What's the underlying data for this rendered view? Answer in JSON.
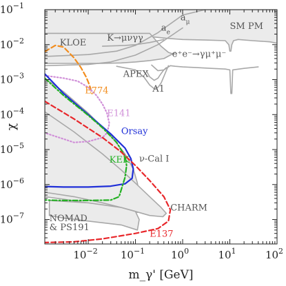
{
  "chart_data": {
    "type": "line",
    "title": "",
    "xlabel": "m_γ' [GeV]",
    "ylabel": "χ",
    "xscale": "log",
    "yscale": "log",
    "xlim": [
      0.0012,
      100
    ],
    "ylim": [
      2e-08,
      0.1
    ],
    "grid": false,
    "x_ticks": [
      {
        "value": 0.01,
        "label": "10",
        "exp": "−2"
      },
      {
        "value": 0.1,
        "label": "10",
        "exp": "−1"
      },
      {
        "value": 1,
        "label": "10",
        "exp": "0"
      },
      {
        "value": 10,
        "label": "10",
        "exp": "1"
      },
      {
        "value": 100,
        "label": "10",
        "exp": "2"
      }
    ],
    "y_ticks": [
      {
        "value": 0.1,
        "label": "10",
        "exp": "−1"
      },
      {
        "value": 0.01,
        "label": "10",
        "exp": "−2"
      },
      {
        "value": 0.001,
        "label": "10",
        "exp": "−3"
      },
      {
        "value": 0.0001,
        "label": "10",
        "exp": "−4"
      },
      {
        "value": 1e-05,
        "label": "10",
        "exp": "−5"
      },
      {
        "value": 1e-06,
        "label": "10",
        "exp": "−6"
      },
      {
        "value": 1e-07,
        "label": "10",
        "exp": "−7"
      }
    ],
    "colors": {
      "excluded_fill": "#ebebeb",
      "bound_gray": "#a8a8a8",
      "e774": "#f28c1c",
      "e141": "#d08fd8",
      "orsay": "#1f2fd8",
      "kek": "#22b022",
      "e137": "#e8262a",
      "label_gray": "#555555"
    },
    "series": [
      {
        "name": "SM PM",
        "color": "#a8a8a8",
        "style": "solid",
        "fill": true,
        "points": [
          [
            0.0012,
            0.1
          ],
          [
            100,
            0.1
          ],
          [
            100,
            0.011
          ],
          [
            70,
            0.012
          ],
          [
            30,
            0.013
          ],
          [
            15,
            0.014
          ],
          [
            12,
            0.013
          ],
          [
            11,
            0.01
          ],
          [
            10.5,
            0.0065
          ],
          [
            10,
            0.0065
          ],
          [
            9.5,
            0.01
          ],
          [
            8,
            0.013
          ],
          [
            3,
            0.0135
          ],
          [
            1,
            0.014
          ],
          [
            0.5,
            0.015
          ],
          [
            0.2,
            0.017
          ],
          [
            0.1,
            0.018
          ],
          [
            0.05,
            0.018
          ],
          [
            0.02,
            0.02
          ],
          [
            0.0012,
            0.021
          ]
        ]
      },
      {
        "name": "KLOE",
        "color": "#a8a8a8",
        "style": "solid",
        "fill": true,
        "points": [
          [
            0.0012,
            0.021
          ],
          [
            0.2,
            0.021
          ],
          [
            0.35,
            0.009
          ],
          [
            0.5,
            0.006
          ],
          [
            0.6,
            0.0055
          ],
          [
            0.7,
            0.006
          ],
          [
            0.4,
            0.004
          ],
          [
            0.2,
            0.0035
          ],
          [
            0.1,
            0.0032
          ],
          [
            0.05,
            0.003
          ],
          [
            0.02,
            0.0029
          ],
          [
            0.01,
            0.0029
          ],
          [
            0.005,
            0.0029
          ],
          [
            0.0012,
            0.0029
          ]
        ]
      },
      {
        "name": "e+e−→γμ+μ−",
        "color": "#a8a8a8",
        "style": "solid",
        "fill": false,
        "points": [
          [
            0.22,
            0.0026
          ],
          [
            0.3,
            0.0018
          ],
          [
            0.4,
            0.0019
          ],
          [
            0.55,
            0.0025
          ],
          [
            0.7,
            0.0024
          ],
          [
            1,
            0.0023
          ],
          [
            2,
            0.0022
          ],
          [
            4,
            0.0021
          ],
          [
            8,
            0.002
          ],
          [
            10,
            0.0019
          ],
          [
            10.5,
            0.0004
          ],
          [
            11,
            0.0004
          ],
          [
            11.5,
            0.0019
          ],
          [
            20,
            0.0021
          ],
          [
            40,
            0.0023
          ]
        ]
      },
      {
        "name": "APEX",
        "color": "#a8a8a8",
        "style": "solid",
        "fill": false,
        "points": [
          [
            0.17,
            0.0018
          ],
          [
            0.2,
            0.0012
          ],
          [
            0.25,
            0.00095
          ],
          [
            0.3,
            0.0011
          ],
          [
            0.35,
            0.0015
          ],
          [
            0.4,
            0.0019
          ],
          [
            0.45,
            0.0022
          ]
        ]
      },
      {
        "name": "A1",
        "color": "#a8a8a8",
        "style": "solid",
        "fill": false,
        "points": [
          [
            0.04,
            0.0024
          ],
          [
            0.1,
            0.0019
          ],
          [
            0.15,
            0.0012
          ],
          [
            0.2,
            0.0007
          ],
          [
            0.25,
            0.00055
          ],
          [
            0.3,
            0.0006
          ],
          [
            0.35,
            0.0008
          ],
          [
            0.45,
            0.0018
          ],
          [
            0.5,
            0.0025
          ]
        ]
      },
      {
        "name": "a_e",
        "color": "#a8a8a8",
        "style": "solid",
        "fill": false,
        "points": [
          [
            0.0012,
            0.0025
          ],
          [
            0.01,
            0.0027
          ],
          [
            0.03,
            0.0032
          ],
          [
            0.1,
            0.005
          ],
          [
            0.3,
            0.01
          ],
          [
            1,
            0.03
          ]
        ]
      },
      {
        "name": "a_μ",
        "color": "#a8a8a8",
        "style": "solid",
        "fill": false,
        "points": [
          [
            0.0012,
            0.0046
          ],
          [
            0.01,
            0.0052
          ],
          [
            0.04,
            0.0065
          ],
          [
            0.1,
            0.0095
          ],
          [
            0.3,
            0.022
          ],
          [
            1,
            0.07
          ],
          [
            3,
            0.1
          ]
        ]
      },
      {
        "name": "K→μνγγ",
        "color": "#a8a8a8",
        "style": "solid",
        "fill": false,
        "points": [
          [
            0.02,
            0.009
          ],
          [
            0.06,
            0.0095
          ],
          [
            0.1,
            0.01
          ],
          [
            0.2,
            0.0115
          ],
          [
            0.4,
            0.014
          ]
        ]
      },
      {
        "name": "ν-Cal I",
        "color": "#a8a8a8",
        "style": "solid",
        "fill": true,
        "points": [
          [
            0.0012,
            0.0011
          ],
          [
            0.003,
            0.00045
          ],
          [
            0.01,
            0.00011
          ],
          [
            0.03,
            2.5e-05
          ],
          [
            0.06,
            7.5e-06
          ],
          [
            0.09,
            2.8e-06
          ],
          [
            0.11,
            1.1e-06
          ],
          [
            0.12,
            5e-07
          ],
          [
            0.12,
            2e-07
          ],
          [
            0.11,
            1.6e-07
          ],
          [
            0.08,
            1.8e-07
          ],
          [
            0.04,
            2.2e-07
          ],
          [
            0.015,
            2.7e-07
          ],
          [
            0.003,
            3.8e-07
          ],
          [
            0.0012,
            4.5e-07
          ]
        ]
      },
      {
        "name": "CHARM",
        "color": "#a8a8a8",
        "style": "solid",
        "fill": true,
        "points": [
          [
            0.0012,
            0.00012
          ],
          [
            0.005,
            3.2e-05
          ],
          [
            0.02,
            7.5e-06
          ],
          [
            0.05,
            2.6e-06
          ],
          [
            0.1,
            1.1e-06
          ],
          [
            0.2,
            4.5e-07
          ],
          [
            0.35,
            2.2e-07
          ],
          [
            0.45,
            1.5e-07
          ],
          [
            0.38,
            1.2e-07
          ],
          [
            0.2,
            1.3e-07
          ],
          [
            0.1,
            1.7e-07
          ],
          [
            0.05,
            2.2e-07
          ],
          [
            0.02,
            3e-07
          ],
          [
            0.005,
            4.5e-07
          ],
          [
            0.0012,
            6e-07
          ]
        ]
      },
      {
        "name": "NOMAD & PS191",
        "color": "#a8a8a8",
        "style": "solid",
        "fill": true,
        "points": [
          [
            0.0015,
            3.5e-07
          ],
          [
            0.01,
            3e-07
          ],
          [
            0.05,
            2.2e-07
          ],
          [
            0.1,
            1.7e-07
          ],
          [
            0.12,
            1e-07
          ],
          [
            0.11,
            5e-08
          ],
          [
            0.05,
            7e-08
          ],
          [
            0.01,
            9e-08
          ],
          [
            0.003,
            1.1e-07
          ],
          [
            0.0015,
            1.3e-07
          ]
        ]
      },
      {
        "name": "E774",
        "color": "#f28c1c",
        "style": "dashed",
        "fill": false,
        "points": [
          [
            0.0012,
            0.0063
          ],
          [
            0.002,
            0.0095
          ],
          [
            0.003,
            0.0085
          ],
          [
            0.005,
            0.0042
          ],
          [
            0.007,
            0.0022
          ],
          [
            0.009,
            0.0012
          ],
          [
            0.01,
            0.00085
          ],
          [
            0.011,
            0.0006
          ],
          [
            0.012,
            0.0004
          ]
        ]
      },
      {
        "name": "E141",
        "color": "#d08fd8",
        "style": "dotted",
        "fill": false,
        "points": [
          [
            0.0012,
            0.0013
          ],
          [
            0.003,
            0.0011
          ],
          [
            0.006,
            0.0009
          ],
          [
            0.01,
            0.0006
          ],
          [
            0.015,
            0.00035
          ],
          [
            0.02,
            0.0002
          ],
          [
            0.025,
            0.00011
          ],
          [
            0.028,
            5.5e-05
          ],
          [
            0.025,
            3e-05
          ],
          [
            0.02,
            2.2e-05
          ],
          [
            0.01,
            1.7e-05
          ],
          [
            0.005,
            1.6e-05
          ],
          [
            0.003,
            2e-05
          ],
          [
            0.0012,
            3e-05
          ]
        ]
      },
      {
        "name": "Orsay",
        "color": "#1f2fd8",
        "style": "solid",
        "fill": false,
        "points": [
          [
            0.0012,
            0.00145
          ],
          [
            0.003,
            0.0004
          ],
          [
            0.01,
            0.0001
          ],
          [
            0.03,
            2.8e-05
          ],
          [
            0.06,
            1.1e-05
          ],
          [
            0.08,
            5.5e-06
          ],
          [
            0.09,
            2.8e-06
          ],
          [
            0.085,
            1.5e-06
          ],
          [
            0.06,
            1.05e-06
          ],
          [
            0.03,
            9e-07
          ],
          [
            0.01,
            8.5e-07
          ],
          [
            0.003,
            8.5e-07
          ],
          [
            0.0012,
            8.8e-07
          ]
        ]
      },
      {
        "name": "KEK",
        "color": "#22b022",
        "style": "dashdot",
        "fill": false,
        "points": [
          [
            0.0012,
            0.0011
          ],
          [
            0.003,
            0.00035
          ],
          [
            0.01,
            9.5e-05
          ],
          [
            0.02,
            4.2e-05
          ],
          [
            0.04,
            1.6e-05
          ],
          [
            0.06,
            6.5e-06
          ],
          [
            0.065,
            3.5e-06
          ],
          [
            0.06,
            1.6e-06
          ],
          [
            0.045,
            4.5e-07
          ],
          [
            0.03,
            3.6e-07
          ],
          [
            0.01,
            3.5e-07
          ],
          [
            0.003,
            3.5e-07
          ],
          [
            0.0012,
            3.6e-07
          ]
        ]
      },
      {
        "name": "E137",
        "color": "#e8262a",
        "style": "dashed",
        "fill": false,
        "points": [
          [
            0.0012,
            0.00024
          ],
          [
            0.005,
            7.5e-05
          ],
          [
            0.02,
            2.2e-05
          ],
          [
            0.05,
            8.5e-06
          ],
          [
            0.1,
            3.5e-06
          ],
          [
            0.2,
            1.3e-06
          ],
          [
            0.4,
            4.5e-07
          ],
          [
            0.55,
            1.9e-07
          ],
          [
            0.5,
            9e-08
          ],
          [
            0.3,
            5.5e-08
          ],
          [
            0.1,
            4e-08
          ],
          [
            0.02,
            2.8e-08
          ],
          [
            0.005,
            2.3e-08
          ],
          [
            0.0012,
            2.2e-08
          ]
        ]
      }
    ],
    "annotations": [
      {
        "id": "sm-pm",
        "text": "SM PM",
        "x": 10,
        "y": 0.028,
        "color": "#555555",
        "size": "normal"
      },
      {
        "id": "kloe",
        "text": "KLOE",
        "x": 0.0025,
        "y": 0.0095,
        "color": "#555555",
        "size": "normal"
      },
      {
        "id": "k-mu-nu",
        "text": "K→μνγγ",
        "x": 0.025,
        "y": 0.013,
        "color": "#555555",
        "size": "normal"
      },
      {
        "id": "a-e",
        "text": "a",
        "sub": "e",
        "x": 0.35,
        "y": 0.025,
        "color": "#555555",
        "size": "normal"
      },
      {
        "id": "a-mu",
        "text": "a",
        "sub": "μ",
        "x": 0.9,
        "y": 0.05,
        "color": "#555555",
        "size": "normal"
      },
      {
        "id": "ee-gmumu",
        "text": "e⁺e⁻→γμ⁺μ⁻",
        "x": 0.6,
        "y": 0.0045,
        "color": "#555555",
        "size": "normal"
      },
      {
        "id": "apex",
        "text": "APEX",
        "x": 0.055,
        "y": 0.0012,
        "color": "#555555",
        "size": "normal"
      },
      {
        "id": "a1",
        "text": "A1",
        "x": 0.23,
        "y": 0.00045,
        "color": "#555555",
        "size": "normal"
      },
      {
        "id": "e774",
        "text": "E774",
        "x": 0.0085,
        "y": 0.0004,
        "color": "#f28c1c",
        "size": "normal"
      },
      {
        "id": "e141",
        "text": "E141",
        "x": 0.025,
        "y": 9e-05,
        "color": "#d08fd8",
        "size": "normal"
      },
      {
        "id": "orsay",
        "text": "Orsay",
        "x": 0.05,
        "y": 2.8e-05,
        "color": "#1f2fd8",
        "size": "normal"
      },
      {
        "id": "kek",
        "text": "KEK",
        "x": 0.028,
        "y": 4.2e-06,
        "color": "#22b022",
        "size": "normal"
      },
      {
        "id": "nu-cal",
        "text": "ν-Cal I",
        "x": 0.12,
        "y": 4.5e-06,
        "color": "#555555",
        "size": "normal"
      },
      {
        "id": "charm",
        "text": "CHARM",
        "x": 0.55,
        "y": 1.8e-07,
        "color": "#555555",
        "size": "normal"
      },
      {
        "id": "nomad",
        "text": "NOMAD",
        "x": 0.0015,
        "y": 9e-08,
        "color": "#555555",
        "size": "normal"
      },
      {
        "id": "ps191",
        "text": "& PS191",
        "x": 0.0015,
        "y": 5e-08,
        "color": "#555555",
        "size": "normal"
      },
      {
        "id": "e137",
        "text": "E137",
        "x": 0.2,
        "y": 3.2e-08,
        "color": "#e8262a",
        "size": "normal"
      }
    ]
  }
}
